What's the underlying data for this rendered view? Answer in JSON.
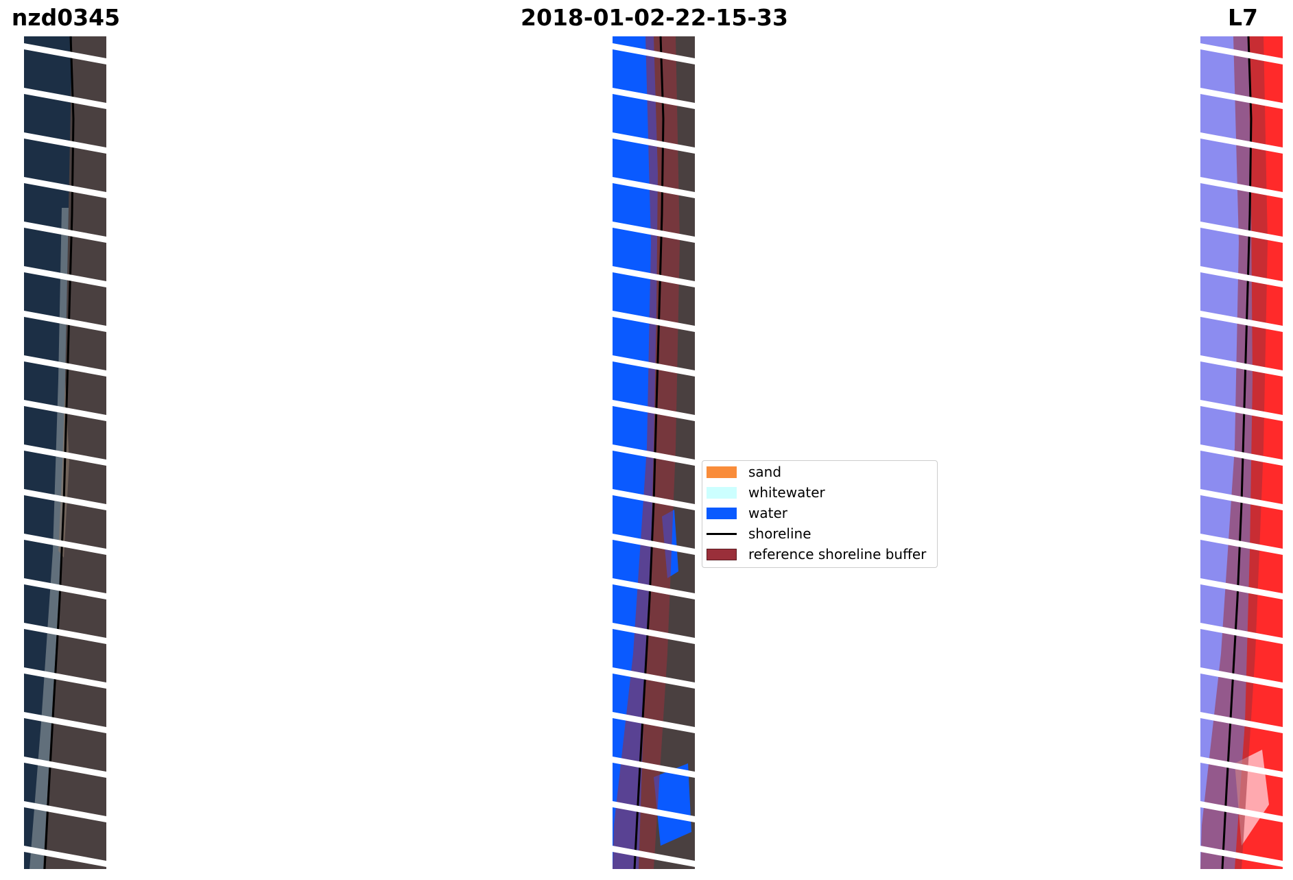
{
  "titles": {
    "left": "nzd0345",
    "center": "2018-01-02-22-15-33",
    "right": "L7"
  },
  "colors": {
    "sand": "#f98c3a",
    "whitewater": "#ccffff",
    "water": "#0a5aff",
    "shoreline": "#000000",
    "reference_buffer": "#9a2f3a",
    "scan_gap": "#ffffff",
    "ocean_rgb": "#1c2f45",
    "land_rgb": "#4a4040",
    "index_water": "#8c8cf0",
    "index_land": "#ff2a2a"
  },
  "legend": {
    "items": [
      {
        "label": "sand",
        "kind": "patch",
        "color": "#f98c3a"
      },
      {
        "label": "whitewater",
        "kind": "patch",
        "color": "#ccffff"
      },
      {
        "label": "water",
        "kind": "patch",
        "color": "#0a5aff"
      },
      {
        "label": "shoreline",
        "kind": "line",
        "color": "#000000"
      },
      {
        "label": "reference shoreline buffer",
        "kind": "patch",
        "color": "#9a2f3a"
      }
    ]
  }
}
